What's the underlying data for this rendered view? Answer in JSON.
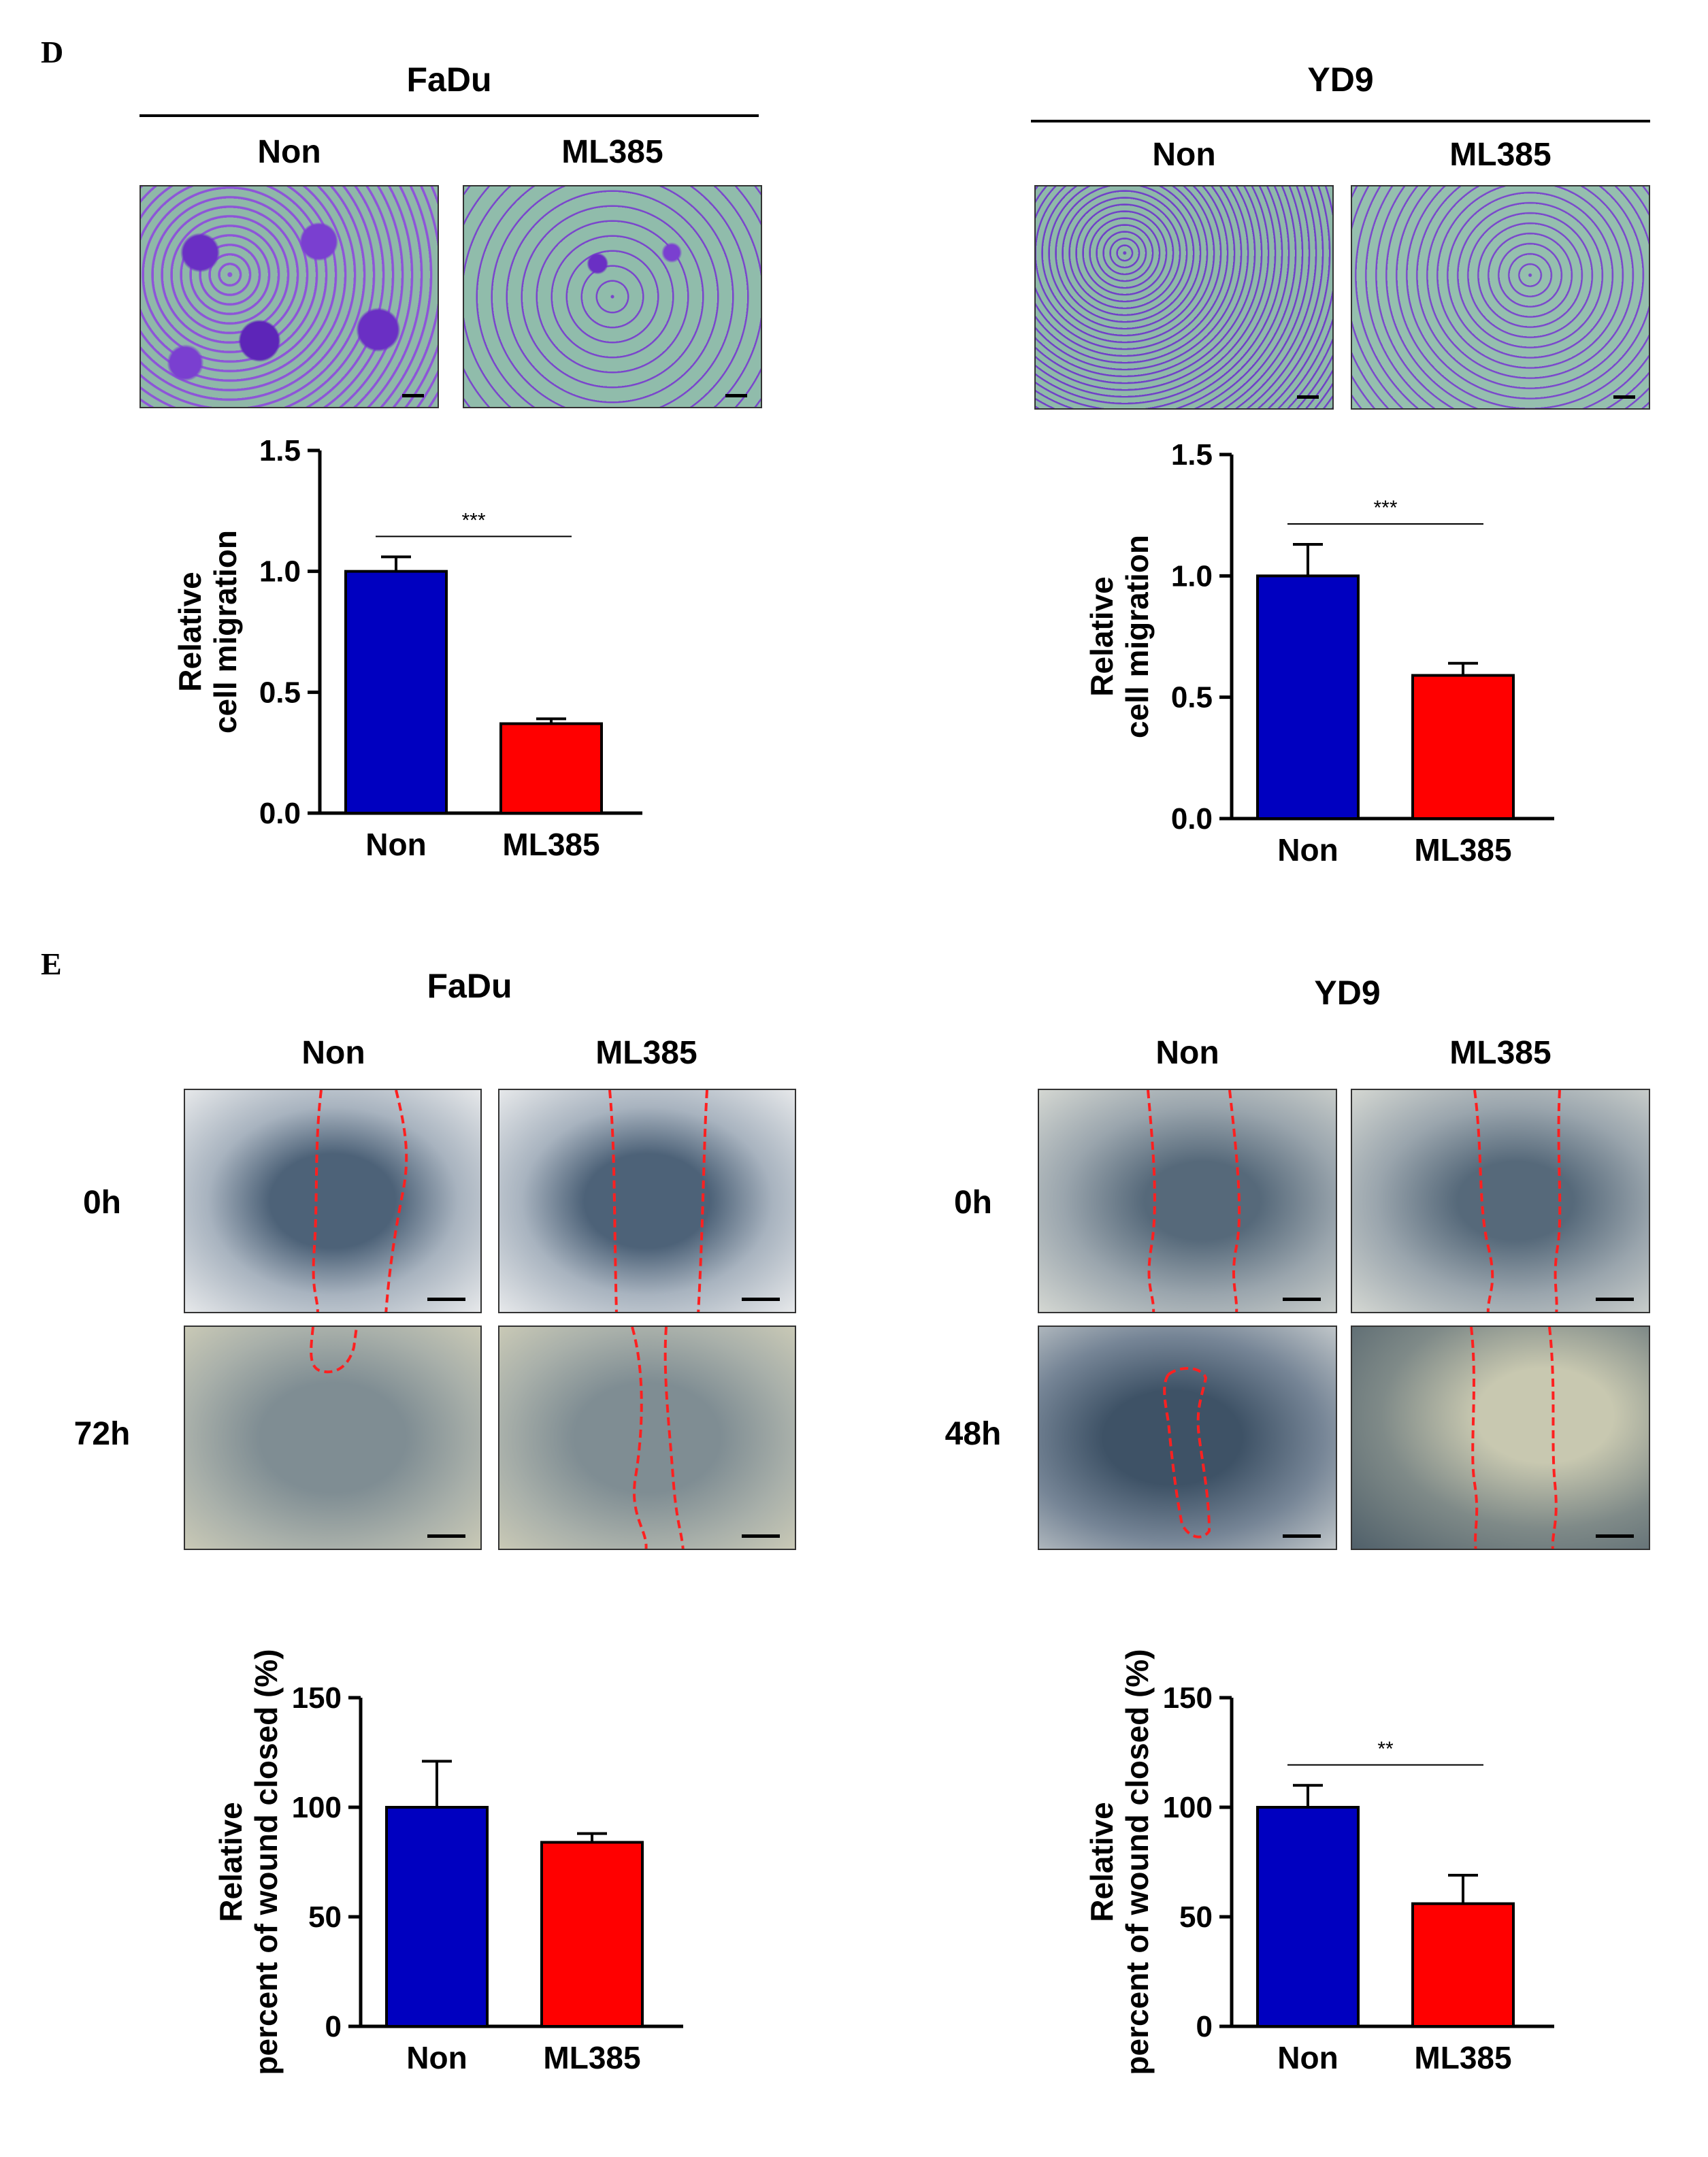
{
  "panels": {
    "d": {
      "letter": "D",
      "left": {
        "cell_line": "FaDu",
        "conditions": [
          "Non",
          "ML385"
        ],
        "image_names": [
          "transwell-fadu-non",
          "transwell-fadu-ml385"
        ]
      },
      "right": {
        "cell_line": "YD9",
        "conditions": [
          "Non",
          "ML385"
        ],
        "image_names": [
          "transwell-yd9-non",
          "transwell-yd9-ml385"
        ]
      }
    },
    "e": {
      "letter": "E",
      "left": {
        "cell_line": "FaDu",
        "conditions": [
          "Non",
          "ML385"
        ],
        "timepoints": [
          "0h",
          "72h"
        ]
      },
      "right": {
        "cell_line": "YD9",
        "conditions": [
          "Non",
          "ML385"
        ],
        "timepoints": [
          "0h",
          "48h"
        ]
      }
    }
  },
  "colors": {
    "non_bar": "#0000c0",
    "ml385_bar": "#ff0000",
    "wound_line": "#ff2020"
  },
  "chart_data": [
    {
      "id": "d-fadu",
      "type": "bar",
      "title": "",
      "categories": [
        "Non",
        "ML385"
      ],
      "values": [
        1.0,
        0.37
      ],
      "errors": [
        0.06,
        0.02
      ],
      "ylabel": "Relative\ncell migration",
      "ylabel_lines": [
        "Relative",
        "cell migration"
      ],
      "ylim": [
        0.0,
        1.5
      ],
      "yticks": [
        "0.0",
        "0.5",
        "1.0",
        "1.5"
      ],
      "significance": "***"
    },
    {
      "id": "d-yd9",
      "type": "bar",
      "title": "",
      "categories": [
        "Non",
        "ML385"
      ],
      "values": [
        1.0,
        0.59
      ],
      "errors": [
        0.13,
        0.05
      ],
      "ylabel": "Relative\ncell migration",
      "ylabel_lines": [
        "Relative",
        "cell migration"
      ],
      "ylim": [
        0.0,
        1.5
      ],
      "yticks": [
        "0.0",
        "0.5",
        "1.0",
        "1.5"
      ],
      "significance": "***"
    },
    {
      "id": "e-fadu",
      "type": "bar",
      "title": "",
      "categories": [
        "Non",
        "ML385"
      ],
      "values": [
        100,
        84
      ],
      "errors": [
        21,
        4
      ],
      "ylabel": "Relative\npercent of wound closed (%)",
      "ylabel_lines": [
        "Relative",
        "percent of wound closed (%)"
      ],
      "ylim": [
        0,
        150
      ],
      "yticks": [
        "0",
        "50",
        "100",
        "150"
      ],
      "significance": ""
    },
    {
      "id": "e-yd9",
      "type": "bar",
      "title": "",
      "categories": [
        "Non",
        "ML385"
      ],
      "values": [
        100,
        56
      ],
      "errors": [
        10,
        13
      ],
      "ylabel": "Relative\npercent of wound closed (%)",
      "ylabel_lines": [
        "Relative",
        "percent of wound closed (%)"
      ],
      "ylim": [
        0,
        150
      ],
      "yticks": [
        "0",
        "50",
        "100",
        "150"
      ],
      "significance": "**"
    }
  ]
}
